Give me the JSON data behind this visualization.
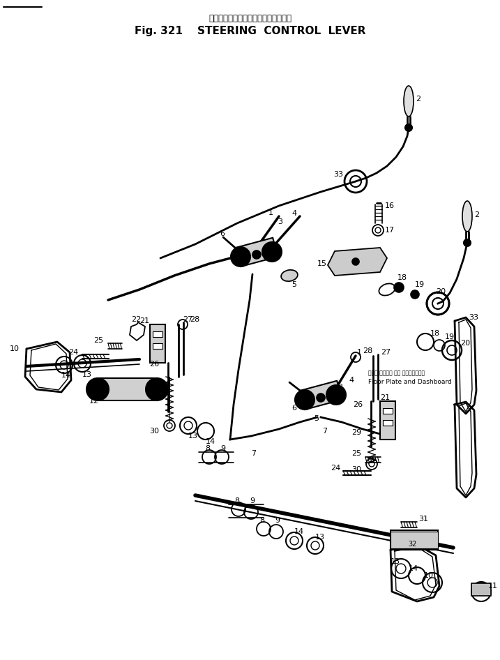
{
  "title_japanese": "ステアリング　コントロール　レバー",
  "title_english": "Fig. 321    STEERING  CONTROL  LEVER",
  "bg_color": "#ffffff",
  "line_color": "#000000",
  "fig_width": 7.17,
  "fig_height": 9.46,
  "dpi": 100,
  "floor_plate_jp": "フロア プレート 及び ダッシュボード",
  "floor_plate_en": "Floor Plate and Dashboard"
}
